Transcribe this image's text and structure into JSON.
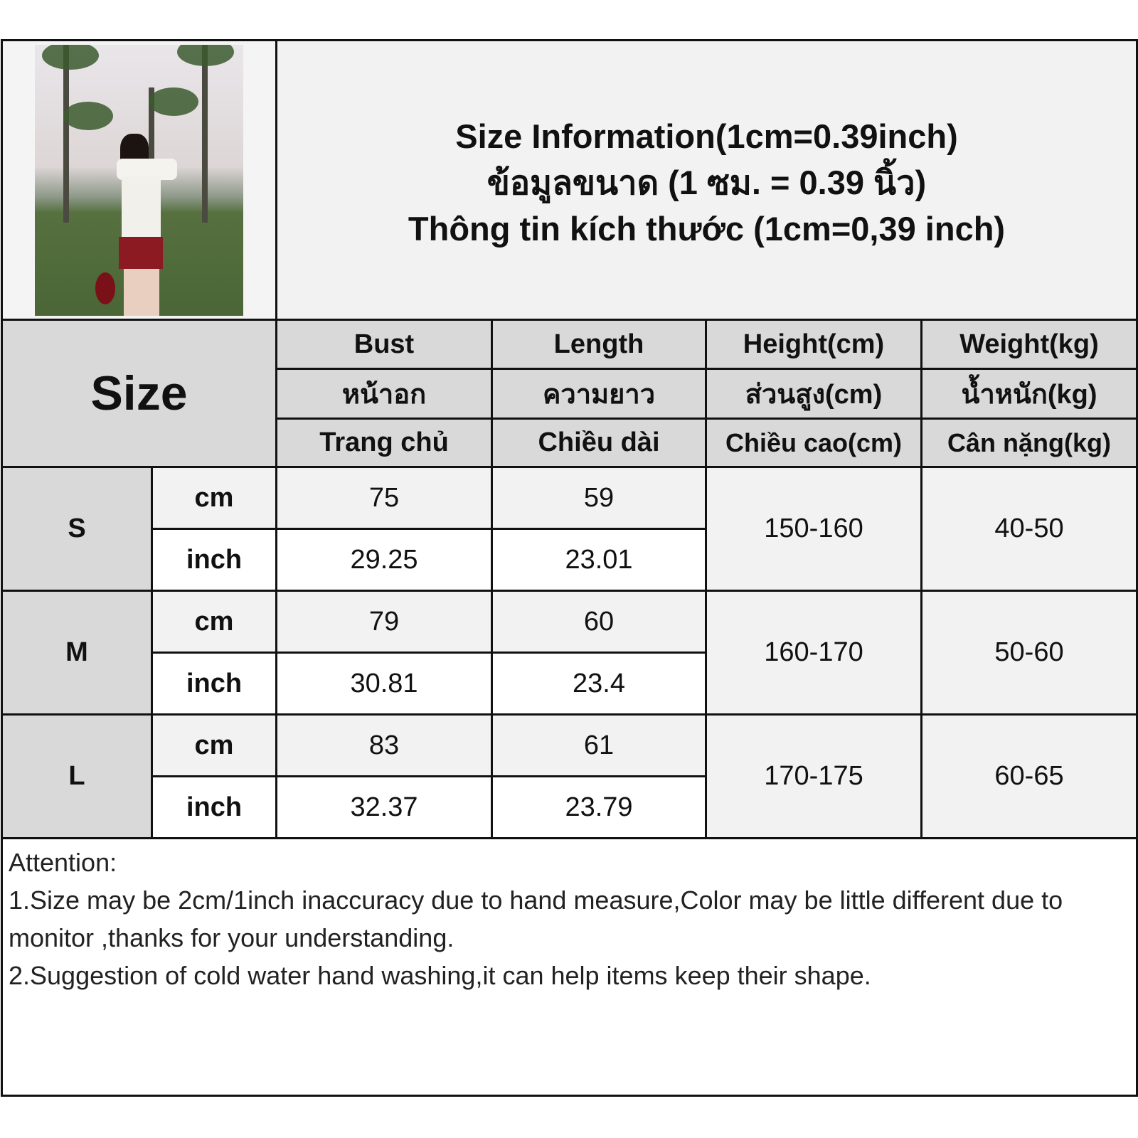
{
  "title": {
    "line1": "Size Information(1cm=0.39inch)",
    "line2": "ข้อมูลขนาด (1 ซม. = 0.39 นิ้ว)",
    "line3": "Thông tin kích thước (1cm=0,39 inch)"
  },
  "header": {
    "size_label": "Size",
    "columns": [
      {
        "en": "Bust",
        "th": "หน้าอก",
        "vi": "Trang chủ"
      },
      {
        "en": "Length",
        "th": "ความยาว",
        "vi": "Chiều dài"
      },
      {
        "en": "Height(cm)",
        "th": "ส่วนสูง(cm)",
        "vi": "Chiều cao(cm)"
      },
      {
        "en": "Weight(kg)",
        "th": "น้ำหนัก(kg)",
        "vi": "Cân nặng(kg)"
      }
    ]
  },
  "units": {
    "cm": "cm",
    "inch": "inch"
  },
  "rows": [
    {
      "size": "S",
      "bust_cm": "75",
      "length_cm": "59",
      "bust_inch": "29.25",
      "length_inch": "23.01",
      "height": "150-160",
      "weight": "40-50"
    },
    {
      "size": "M",
      "bust_cm": "79",
      "length_cm": "60",
      "bust_inch": "30.81",
      "length_inch": "23.4",
      "height": "160-170",
      "weight": "50-60"
    },
    {
      "size": "L",
      "bust_cm": "83",
      "length_cm": "61",
      "bust_inch": "32.37",
      "length_inch": "23.79",
      "height": "170-175",
      "weight": "60-65"
    }
  ],
  "attention": {
    "heading": "Attention:",
    "note1": "1.Size may be 2cm/1inch inaccuracy due to hand measure,Color may be little different due to monitor ,thanks for your understanding.",
    "note2": "2.Suggestion of cold water hand washing,it can help items keep their shape."
  }
}
